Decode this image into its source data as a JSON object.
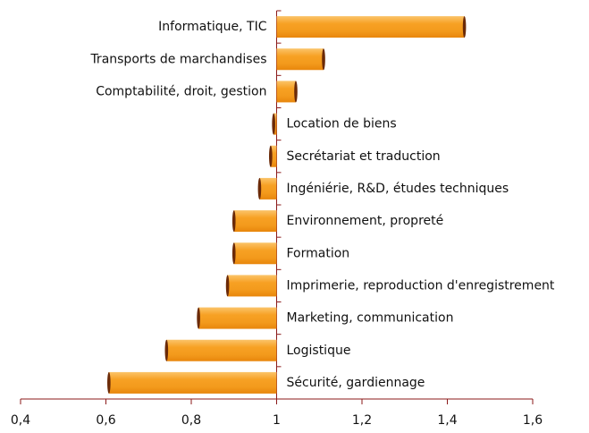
{
  "chart_data": {
    "type": "bar",
    "orientation": "horizontal",
    "baseline": 1,
    "categories": [
      "Informatique, TIC",
      "Transports de marchandises",
      "Comptabilité, droit, gestion",
      "Location de biens",
      "Secrétariat et traduction",
      "Ingéniérie, R&D, études techniques",
      "Environnement, propreté",
      "Formation",
      "Imprimerie, reproduction d'enregistrement",
      "Marketing, communication",
      "Logistique",
      "Sécurité, gardiennage"
    ],
    "values": [
      1.44,
      1.11,
      1.045,
      0.993,
      0.986,
      0.96,
      0.9,
      0.9,
      0.885,
      0.817,
      0.742,
      0.607
    ],
    "color": "#f7a124",
    "xlim": [
      0.4,
      1.6
    ],
    "xticks": [
      {
        "value": 0.4,
        "label": "0,4"
      },
      {
        "value": 0.6,
        "label": "0,6"
      },
      {
        "value": 0.8,
        "label": "0,8"
      },
      1,
      {
        "value": 1.2,
        "label": "1,2"
      },
      {
        "value": 1.4,
        "label": "1,4"
      },
      {
        "value": 1.6,
        "label": "1,6"
      }
    ]
  }
}
